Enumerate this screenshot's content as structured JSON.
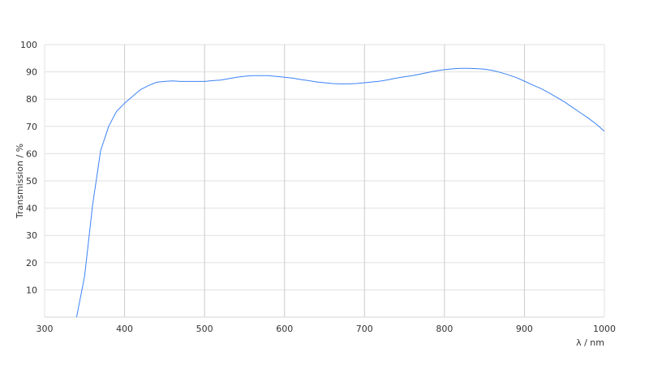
{
  "chart_data": {
    "type": "line",
    "title": "",
    "xlabel": "λ / nm",
    "ylabel": "Transmission / %",
    "xlim": [
      300,
      1000
    ],
    "ylim": [
      0,
      100
    ],
    "xticks": [
      300,
      400,
      500,
      600,
      700,
      800,
      900,
      1000
    ],
    "yticks": [
      10,
      20,
      30,
      40,
      50,
      60,
      70,
      80,
      90,
      100
    ],
    "grid": true,
    "line_color": "#3b82f6",
    "series": [
      {
        "x": [
          340,
          350,
          360,
          370,
          380,
          390,
          400,
          410,
          420,
          430,
          440,
          450,
          460,
          470,
          480,
          490,
          500,
          510,
          520,
          530,
          540,
          550,
          560,
          570,
          580,
          590,
          600,
          610,
          620,
          630,
          640,
          650,
          660,
          670,
          680,
          690,
          700,
          710,
          720,
          730,
          740,
          750,
          760,
          770,
          780,
          790,
          800,
          810,
          820,
          830,
          840,
          850,
          860,
          870,
          880,
          890,
          900,
          910,
          920,
          930,
          940,
          950,
          960,
          970,
          980,
          990,
          1000
        ],
        "y": [
          0,
          15,
          41,
          61,
          70,
          75.5,
          78.5,
          81,
          83.5,
          85,
          86.2,
          86.5,
          86.7,
          86.5,
          86.5,
          86.5,
          86.5,
          86.8,
          87,
          87.5,
          88,
          88.4,
          88.6,
          88.6,
          88.6,
          88.3,
          88,
          87.7,
          87.2,
          86.8,
          86.3,
          86,
          85.7,
          85.6,
          85.6,
          85.7,
          86,
          86.3,
          86.6,
          87.1,
          87.7,
          88.2,
          88.6,
          89.2,
          89.8,
          90.4,
          90.8,
          91.1,
          91.3,
          91.3,
          91.2,
          91,
          90.5,
          89.8,
          88.9,
          87.9,
          86.6,
          85.2,
          84,
          82.4,
          80.7,
          79,
          77,
          75,
          73,
          70.8,
          68.2
        ]
      }
    ]
  }
}
